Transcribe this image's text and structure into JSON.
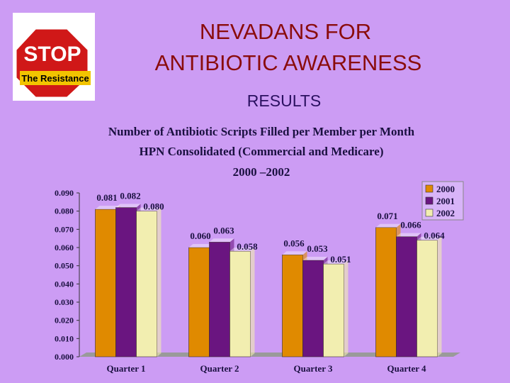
{
  "slide": {
    "title_lines": [
      "NEVADANS FOR",
      "ANTIBIOTIC AWARENESS"
    ],
    "subtitle": "RESULTS",
    "logo": {
      "top": "STOP",
      "banner": "The Resistance"
    }
  },
  "chart_data": {
    "type": "bar",
    "title_lines": [
      "Number of Antibiotic Scripts Filled per Member per Month",
      "HPN Consolidated (Commercial and Medicare)",
      "2000 –2002"
    ],
    "categories": [
      "Quarter 1",
      "Quarter 2",
      "Quarter 3",
      "Quarter 4"
    ],
    "series": [
      {
        "name": "2000",
        "color": "#e08a00",
        "values": [
          0.081,
          0.06,
          0.056,
          0.071
        ],
        "value_labels": [
          "0.081",
          "0.060",
          "0.056",
          "0.071"
        ]
      },
      {
        "name": "2001",
        "color": "#6a1580",
        "values": [
          0.082,
          0.063,
          0.053,
          0.066
        ],
        "value_labels": [
          "0.082",
          "0.063",
          "0.053",
          "0.066"
        ]
      },
      {
        "name": "2002",
        "color": "#f2eeb0",
        "values": [
          0.08,
          0.058,
          0.051,
          0.064
        ],
        "value_labels": [
          "0.080",
          "0.058",
          "0.051",
          "0.064"
        ]
      }
    ],
    "ylim": [
      0,
      0.09
    ],
    "yticks": [
      {
        "value": 0,
        "label": "0.000"
      },
      {
        "value": 0.01,
        "label": "0.010"
      },
      {
        "value": 0.02,
        "label": "0.020"
      },
      {
        "value": 0.03,
        "label": "0.030"
      },
      {
        "value": 0.04,
        "label": "0.040"
      },
      {
        "value": 0.05,
        "label": "0.050"
      },
      {
        "value": 0.06,
        "label": "0.060"
      },
      {
        "value": 0.07,
        "label": "0.070"
      },
      {
        "value": 0.08,
        "label": "0.080"
      },
      {
        "value": 0.09,
        "label": "0.090"
      }
    ],
    "legend": "top-right"
  }
}
